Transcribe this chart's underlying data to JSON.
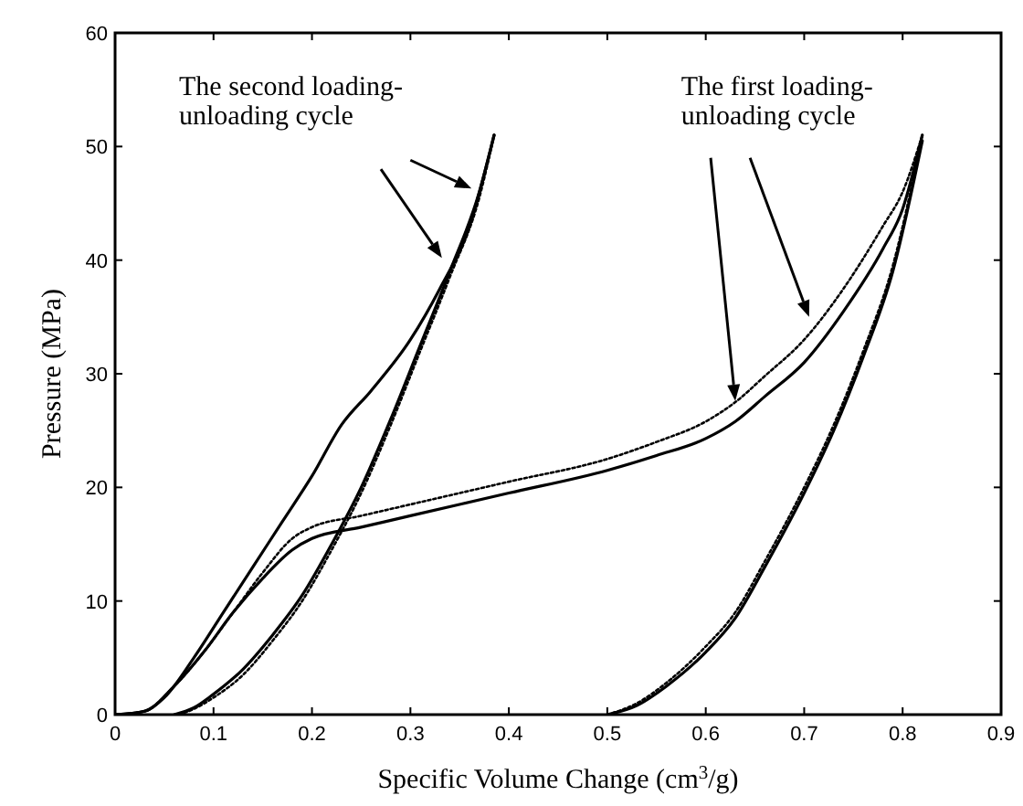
{
  "chart_data": {
    "type": "line",
    "xlabel": "Specific Volume Change (cm$^{3}$/g)",
    "ylabel": "Pressure (MPa)",
    "xlim": [
      0,
      0.9
    ],
    "xticks": [
      0,
      0.1,
      0.2,
      0.3,
      0.4,
      0.5,
      0.6,
      0.7,
      0.8,
      0.9
    ],
    "ylim": [
      0,
      60
    ],
    "yticks": [
      0,
      10,
      20,
      30,
      40,
      50,
      60
    ],
    "grid": false,
    "marker": "none",
    "series": [
      {
        "color": "#000000",
        "line_style": "solid",
        "x": [
          0,
          0.03,
          0.06,
          0.09,
          0.12,
          0.15,
          0.18,
          0.2,
          0.25,
          0.3,
          0.4,
          0.5,
          0.55,
          0.6,
          0.63,
          0.66,
          0.7,
          0.74,
          0.78,
          0.8,
          0.82
        ],
        "values": [
          0,
          0.3,
          2.5,
          5.5,
          9,
          12,
          14.5,
          15.5,
          16.5,
          17.5,
          19.5,
          21.5,
          22.8,
          24.3,
          25.8,
          28,
          31,
          35.5,
          41,
          44.5,
          51
        ]
      },
      {
        "color": "#000000",
        "line_style": "dotted",
        "x": [
          0,
          0.03,
          0.06,
          0.09,
          0.12,
          0.15,
          0.18,
          0.2,
          0.25,
          0.3,
          0.4,
          0.5,
          0.55,
          0.6,
          0.63,
          0.66,
          0.7,
          0.74,
          0.78,
          0.8,
          0.82
        ],
        "values": [
          0,
          0.3,
          2.5,
          5.5,
          9,
          12.5,
          15.5,
          16.5,
          17.5,
          18.5,
          20.5,
          22.5,
          24,
          25.8,
          27.5,
          29.8,
          33,
          37.5,
          43,
          46,
          51
        ]
      },
      {
        "color": "#000000",
        "line_style": "solid",
        "x": [
          0.5,
          0.53,
          0.56,
          0.6,
          0.63,
          0.66,
          0.7,
          0.73,
          0.76,
          0.79,
          0.82
        ],
        "values": [
          0,
          0.8,
          2.5,
          5.5,
          8.5,
          13,
          19.5,
          25,
          31.5,
          39,
          50.5
        ]
      },
      {
        "color": "#000000",
        "line_style": "dotted",
        "x": [
          0.5,
          0.53,
          0.56,
          0.6,
          0.63,
          0.66,
          0.7,
          0.73,
          0.76,
          0.79,
          0.82
        ],
        "values": [
          0,
          1,
          2.8,
          6,
          9,
          13.5,
          20,
          25.5,
          32,
          39.5,
          51
        ]
      },
      {
        "color": "#000000",
        "line_style": "solid",
        "x": [
          0,
          0.03,
          0.05,
          0.08,
          0.11,
          0.14,
          0.17,
          0.2,
          0.23,
          0.26,
          0.3,
          0.33,
          0.36,
          0.385
        ],
        "values": [
          0,
          0.3,
          1.5,
          5,
          9,
          13,
          17,
          21,
          25.5,
          28.5,
          33,
          37.5,
          43,
          51
        ]
      },
      {
        "color": "#000000",
        "line_style": "solid",
        "x": [
          0.06,
          0.08,
          0.1,
          0.13,
          0.16,
          0.19,
          0.22,
          0.25,
          0.28,
          0.31,
          0.34,
          0.37,
          0.385
        ],
        "values": [
          0,
          0.6,
          1.8,
          4,
          7,
          10.5,
          15,
          20,
          26,
          32.5,
          39,
          46,
          51
        ]
      },
      {
        "color": "#000000",
        "line_style": "dotted",
        "x": [
          0.065,
          0.08,
          0.1,
          0.13,
          0.16,
          0.19,
          0.22,
          0.25,
          0.28,
          0.31,
          0.34,
          0.37,
          0.385
        ],
        "values": [
          0,
          0.5,
          1.5,
          3.5,
          6.5,
          10,
          14.5,
          19.5,
          25.5,
          32,
          38.5,
          45.5,
          51
        ]
      }
    ],
    "annotations": [
      "The second loading-\nunloading cycle",
      "The first loading-\nunloading cycle"
    ]
  }
}
